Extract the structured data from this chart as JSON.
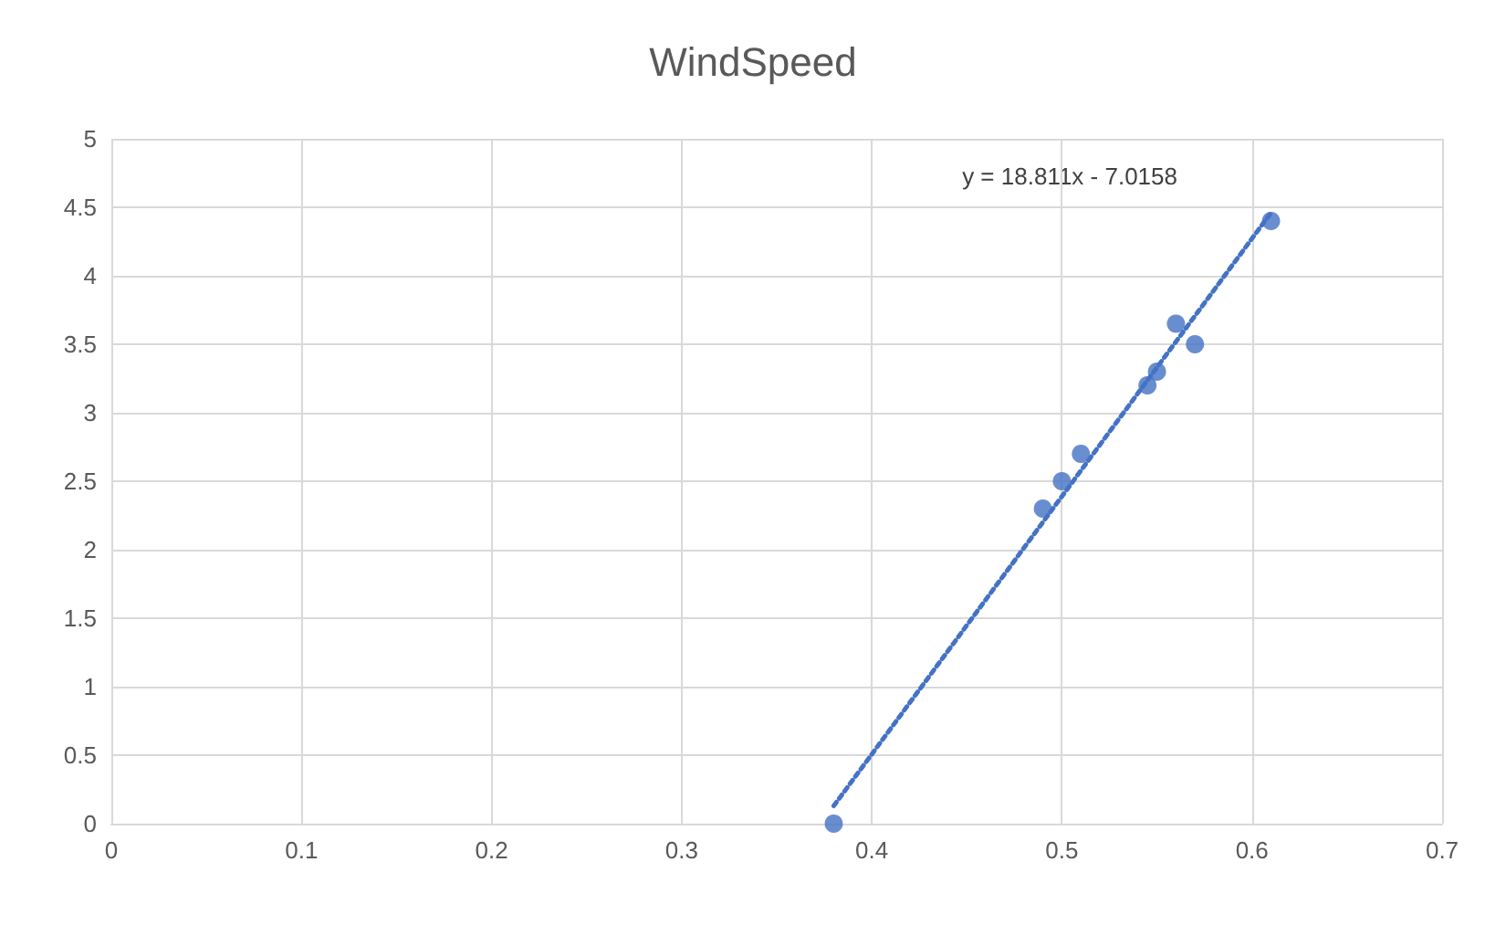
{
  "chart_data": {
    "type": "scatter",
    "title": "WindSpeed",
    "series": [
      {
        "color": "#4472c4",
        "x": [
          0.38,
          0.49,
          0.5,
          0.51,
          0.545,
          0.55,
          0.56,
          0.57,
          0.61
        ],
        "values": [
          0,
          2.3,
          2.5,
          2.7,
          3.2,
          3.3,
          3.65,
          3.5,
          4.4
        ],
        "marker": "circle"
      },
      {
        "type": "line",
        "color": "#4472c4",
        "x": [
          0.38,
          0.61
        ],
        "values": [
          0.13,
          4.46
        ],
        "line_style": "dotted",
        "marker": "none"
      }
    ],
    "annotations": [
      "y = 18.811x - 7.0158"
    ],
    "xlim": [
      0,
      0.7
    ],
    "xticks": [
      0,
      0.1,
      0.2,
      0.3,
      0.4,
      0.5,
      0.6,
      0.7
    ],
    "ylim": [
      0,
      5
    ],
    "yticks": [
      0,
      0.5,
      1,
      1.5,
      2,
      2.5,
      3,
      3.5,
      4,
      4.5,
      5
    ],
    "grid": true
  }
}
